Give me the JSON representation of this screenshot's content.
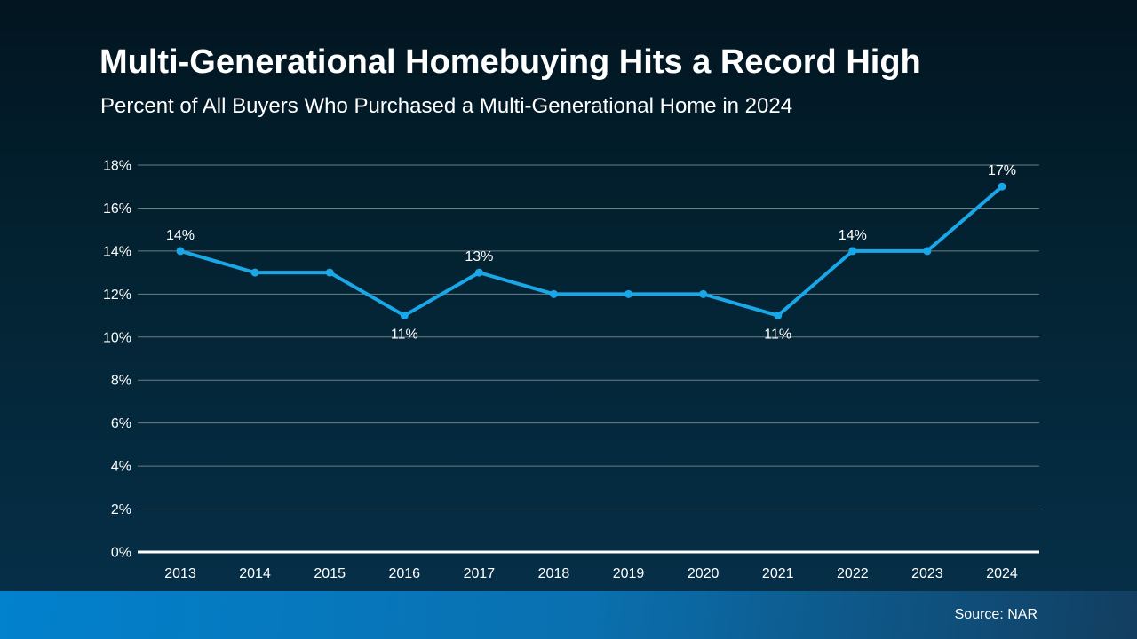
{
  "header": {
    "title": "Multi-Generational Homebuying Hits a Record High",
    "subtitle": "Percent of All Buyers Who Purchased a Multi-Generational Home in 2024"
  },
  "footer": {
    "source": "Source: NAR"
  },
  "colors": {
    "background_top": "#021520",
    "background_bottom": "#06304a",
    "line": "#1aa7e8",
    "gridline": "#6f7d85",
    "axis_line": "#ffffff",
    "text": "#ffffff",
    "footer_left": "#0281cd",
    "footer_mid": "#0a70af",
    "footer_right": "#123e60"
  },
  "chart_data": {
    "type": "line",
    "title": "Multi-Generational Homebuying Hits a Record High",
    "subtitle": "Percent of All Buyers Who Purchased a Multi-Generational Home in 2024",
    "categories": [
      "2013",
      "2014",
      "2015",
      "2016",
      "2017",
      "2018",
      "2019",
      "2020",
      "2021",
      "2022",
      "2023",
      "2024"
    ],
    "values": [
      14,
      13,
      13,
      11,
      13,
      12,
      12,
      12,
      11,
      14,
      14,
      17
    ],
    "point_labels": [
      "14%",
      null,
      null,
      "11%",
      "13%",
      null,
      null,
      null,
      "11%",
      "14%",
      null,
      "17%"
    ],
    "point_label_positions": [
      "above",
      null,
      null,
      "below",
      "above",
      null,
      null,
      null,
      "below",
      "above",
      null,
      "above"
    ],
    "ytick_labels": [
      "0%",
      "2%",
      "4%",
      "6%",
      "8%",
      "10%",
      "12%",
      "14%",
      "16%",
      "18%"
    ],
    "ylim": [
      0,
      18
    ],
    "ytick_step": 2,
    "xlabel": "",
    "ylabel": "",
    "grid": true,
    "legend": false,
    "source": "Source: NAR"
  }
}
